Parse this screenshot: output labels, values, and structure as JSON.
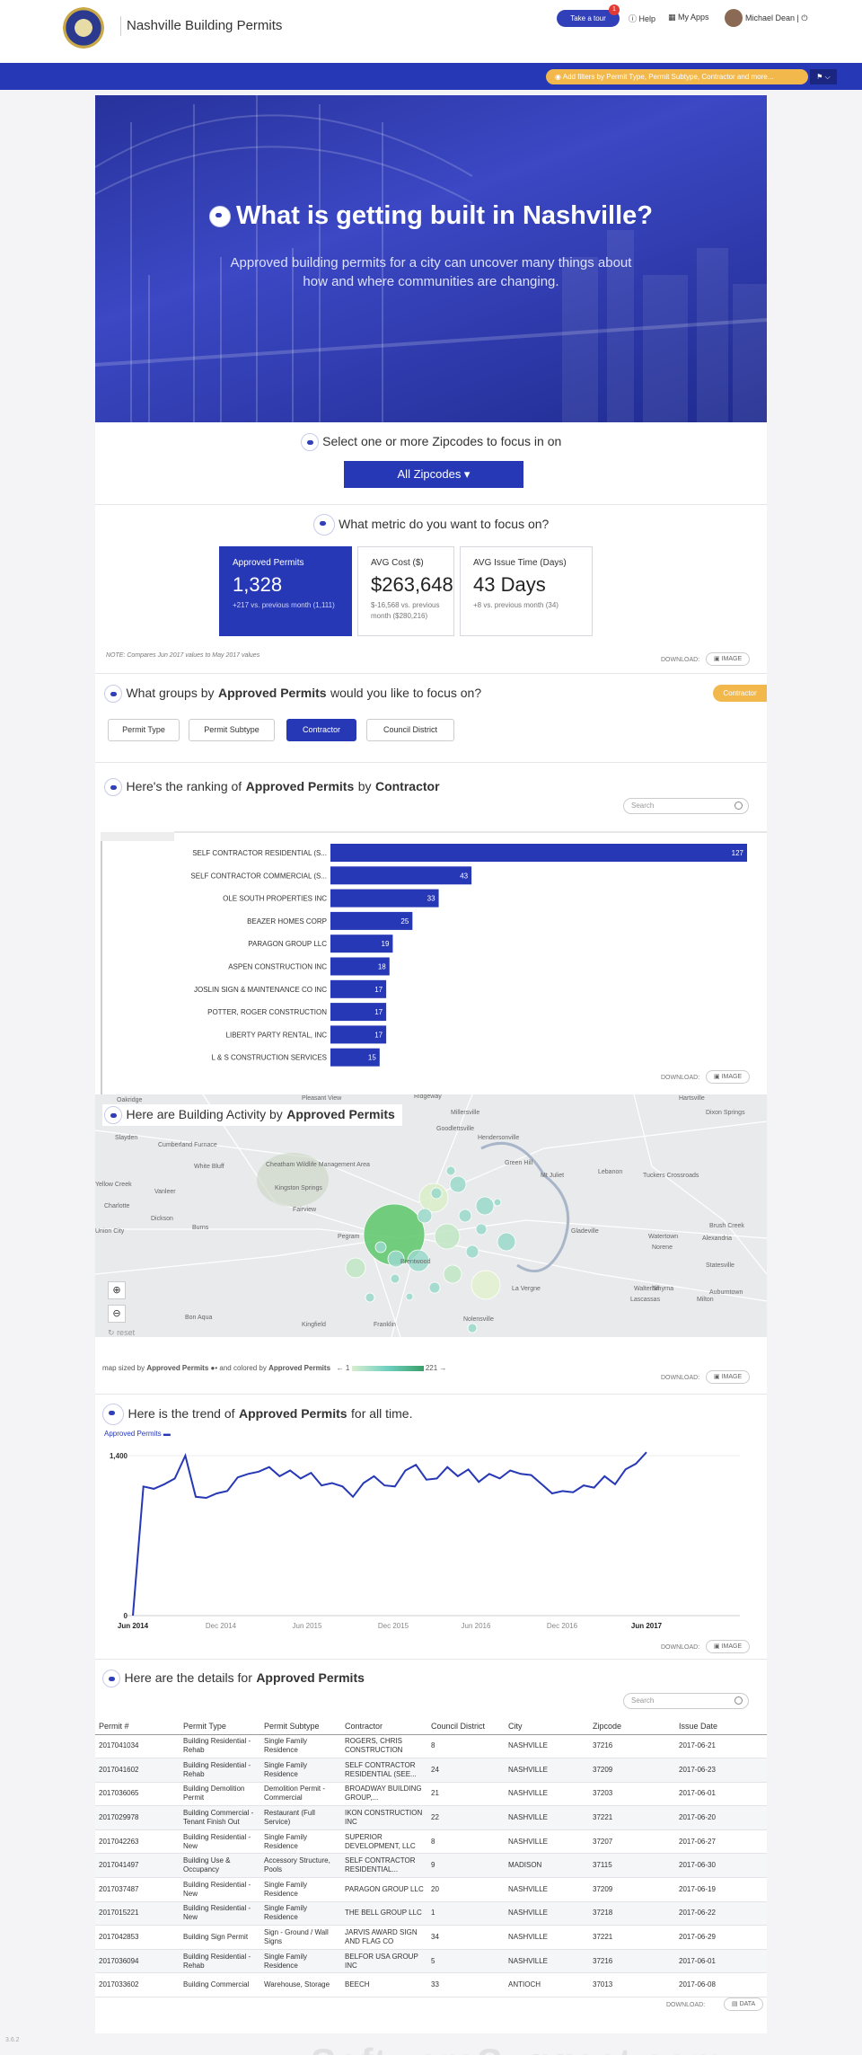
{
  "header": {
    "app_title": "Nashville Building Permits",
    "tour_label": "Take a tour",
    "tour_badge": "1",
    "help_label": "Help",
    "myapps_label": "My Apps",
    "user_name": "Michael Dean"
  },
  "filterbar": {
    "pill_text": "Add filters by Permit Type, Permit Subtype, Contractor and more..."
  },
  "hero": {
    "title": "What is getting built in Nashville?",
    "subtitle": "Approved building permits for a city can uncover many things about how and where communities are changing."
  },
  "zipcodes": {
    "question": "Select one or more Zipcodes to focus in on",
    "button": "All Zipcodes ▾"
  },
  "metrics": {
    "question": "What metric do you want to focus on?",
    "cards": [
      {
        "title": "Approved Permits",
        "value": "1,328",
        "sub": "+217 vs. previous month (1,111)"
      },
      {
        "title": "AVG Cost ($)",
        "value": "$263,648",
        "sub": "$-16,568 vs. previous month ($280,216)"
      },
      {
        "title": "AVG Issue Time (Days)",
        "value": "43 Days",
        "sub": "+8 vs. previous month (34)"
      }
    ],
    "note": "NOTE: Compares Jun 2017 values to May 2017 values",
    "download": "DOWNLOAD:",
    "image_btn": "IMAGE"
  },
  "groups": {
    "q_pre": "What groups by",
    "q_metric": "Approved Permits",
    "q_post": "would you like to focus on?",
    "badge": "Contractor",
    "buttons": [
      "Permit Type",
      "Permit Subtype",
      "Contractor",
      "Council District"
    ]
  },
  "ranking": {
    "q_pre": "Here's the ranking of",
    "q_metric": "Approved Permits",
    "q_mid": "by",
    "q_group": "Contractor",
    "search_placeholder": "Search",
    "download": "DOWNLOAD:",
    "image_btn": "IMAGE"
  },
  "chart_data": [
    {
      "type": "bar",
      "title": "",
      "categories": [
        "SELF CONTRACTOR RESIDENTIAL (S...",
        "SELF CONTRACTOR COMMERCIAL (S...",
        "OLE SOUTH PROPERTIES INC",
        "BEAZER HOMES CORP",
        "PARAGON GROUP LLC",
        "ASPEN CONSTRUCTION INC",
        "JOSLIN SIGN & MAINTENANCE CO INC",
        "POTTER, ROGER CONSTRUCTION",
        "LIBERTY PARTY RENTAL, INC",
        "L & S CONSTRUCTION SERVICES"
      ],
      "values": [
        127,
        43,
        33,
        25,
        19,
        18,
        17,
        17,
        17,
        15
      ],
      "xlim": [
        0,
        127
      ]
    },
    {
      "type": "line",
      "title": "",
      "series": [
        {
          "name": "Approved Permits",
          "values": [
            0,
            1130,
            1110,
            1150,
            1200,
            1400,
            1040,
            1030,
            1070,
            1090,
            1210,
            1240,
            1260,
            1300,
            1220,
            1270,
            1200,
            1250,
            1140,
            1160,
            1130,
            1040,
            1160,
            1220,
            1140,
            1130,
            1270,
            1320,
            1190,
            1200,
            1300,
            1220,
            1280,
            1170,
            1240,
            1200,
            1270,
            1240,
            1230,
            1150,
            1070,
            1090,
            1080,
            1140,
            1120,
            1220,
            1150,
            1280,
            1330,
            1430
          ]
        }
      ],
      "x_ticks": [
        "Jun 2014",
        "Dec 2014",
        "Jun 2015",
        "Dec 2015",
        "Jun 2016",
        "Dec 2016",
        "Jun 2017"
      ],
      "y_ticks": [
        "1,400",
        "0"
      ],
      "ylim": [
        0,
        1400
      ]
    }
  ],
  "map": {
    "q_pre": "Here are Building Activity by",
    "q_metric": "Approved Permits",
    "reset": "reset",
    "legend_pre": "map sized by",
    "legend_metric": "Approved Permits",
    "legend_mid": "and colored by",
    "legend_metric2": "Approved Permits",
    "legend_min": "1",
    "legend_max": "221",
    "download": "DOWNLOAD:",
    "image_btn": "IMAGE",
    "places": [
      "Oakridge",
      "Pleasant View",
      "Ridgeway",
      "Millersville",
      "Hartsville",
      "Dixon Springs",
      "Slayden",
      "Goodlettsville",
      "Hendersonville",
      "Cumberland Furnace",
      "Cheatham Wildlife Management Area",
      "White Bluff",
      "Kingston Springs",
      "Fairview",
      "Dickson",
      "Burns",
      "Pegram",
      "Brentwood",
      "La Vergne",
      "Franklin",
      "Nolensville",
      "Mt Juliet",
      "Lebanon",
      "Tuckers Crossroads",
      "Gladeville",
      "Watertown",
      "Norene",
      "Brush Creek",
      "Alexandria",
      "Statesville",
      "Auburntown",
      "Milton",
      "Walterhill",
      "Lascassas",
      "Smyrna",
      "Bon Aqua",
      "Kingfield",
      "Vanleer",
      "Yellow Creek",
      "Charlotte",
      "Union City",
      "Green Hill"
    ]
  },
  "trend": {
    "q_pre": "Here is the trend of",
    "q_metric": "Approved Permits",
    "q_post": "for all time.",
    "legend": "Approved Permits",
    "download": "DOWNLOAD:",
    "image_btn": "IMAGE"
  },
  "details": {
    "q_pre": "Here are the details for",
    "q_metric": "Approved Permits",
    "search_placeholder": "Search",
    "columns": [
      "Permit #",
      "Permit Type",
      "Permit Subtype",
      "Contractor",
      "Council District",
      "City",
      "Zipcode",
      "Issue Date"
    ],
    "rows": [
      [
        "2017041034",
        "Building Residential - Rehab",
        "Single Family Residence",
        "ROGERS, CHRIS CONSTRUCTION",
        "8",
        "NASHVILLE",
        "37216",
        "2017-06-21"
      ],
      [
        "2017041602",
        "Building Residential - Rehab",
        "Single Family Residence",
        "SELF CONTRACTOR RESIDENTIAL (SEE...",
        "24",
        "NASHVILLE",
        "37209",
        "2017-06-23"
      ],
      [
        "2017036065",
        "Building Demolition Permit",
        "Demolition Permit - Commercial",
        "BROADWAY BUILDING GROUP,...",
        "21",
        "NASHVILLE",
        "37203",
        "2017-06-01"
      ],
      [
        "2017029978",
        "Building Commercial - Tenant Finish Out",
        "Restaurant (Full Service)",
        "IKON CONSTRUCTION INC",
        "22",
        "NASHVILLE",
        "37221",
        "2017-06-20"
      ],
      [
        "2017042263",
        "Building Residential - New",
        "Single Family Residence",
        "SUPERIOR DEVELOPMENT, LLC",
        "8",
        "NASHVILLE",
        "37207",
        "2017-06-27"
      ],
      [
        "2017041497",
        "Building Use & Occupancy",
        "Accessory Structure, Pools",
        "SELF CONTRACTOR RESIDENTIAL...",
        "9",
        "MADISON",
        "37115",
        "2017-06-30"
      ],
      [
        "2017037487",
        "Building Residential - New",
        "Single Family Residence",
        "PARAGON GROUP LLC",
        "20",
        "NASHVILLE",
        "37209",
        "2017-06-19"
      ],
      [
        "2017015221",
        "Building Residential - New",
        "Single Family Residence",
        "THE BELL GROUP LLC",
        "1",
        "NASHVILLE",
        "37218",
        "2017-06-22"
      ],
      [
        "2017042853",
        "Building Sign Permit",
        "Sign - Ground / Wall Signs",
        "JARVIS AWARD SIGN AND FLAG CO",
        "34",
        "NASHVILLE",
        "37221",
        "2017-06-29"
      ],
      [
        "2017036094",
        "Building Residential - Rehab",
        "Single Family Residence",
        "BELFOR USA GROUP INC",
        "5",
        "NASHVILLE",
        "37216",
        "2017-06-01"
      ],
      [
        "2017033602",
        "Building Commercial",
        "Warehouse, Storage",
        "BEECH",
        "33",
        "ANTIOCH",
        "37013",
        "2017-06-08"
      ]
    ],
    "download": "DOWNLOAD:",
    "data_btn": "DATA"
  },
  "footer": {
    "version": "3.6.2"
  },
  "colors": {
    "brand": "#2638b5",
    "accent": "#f2b84b",
    "line": "#2638b5",
    "map_circle": "#6fcfc0"
  }
}
